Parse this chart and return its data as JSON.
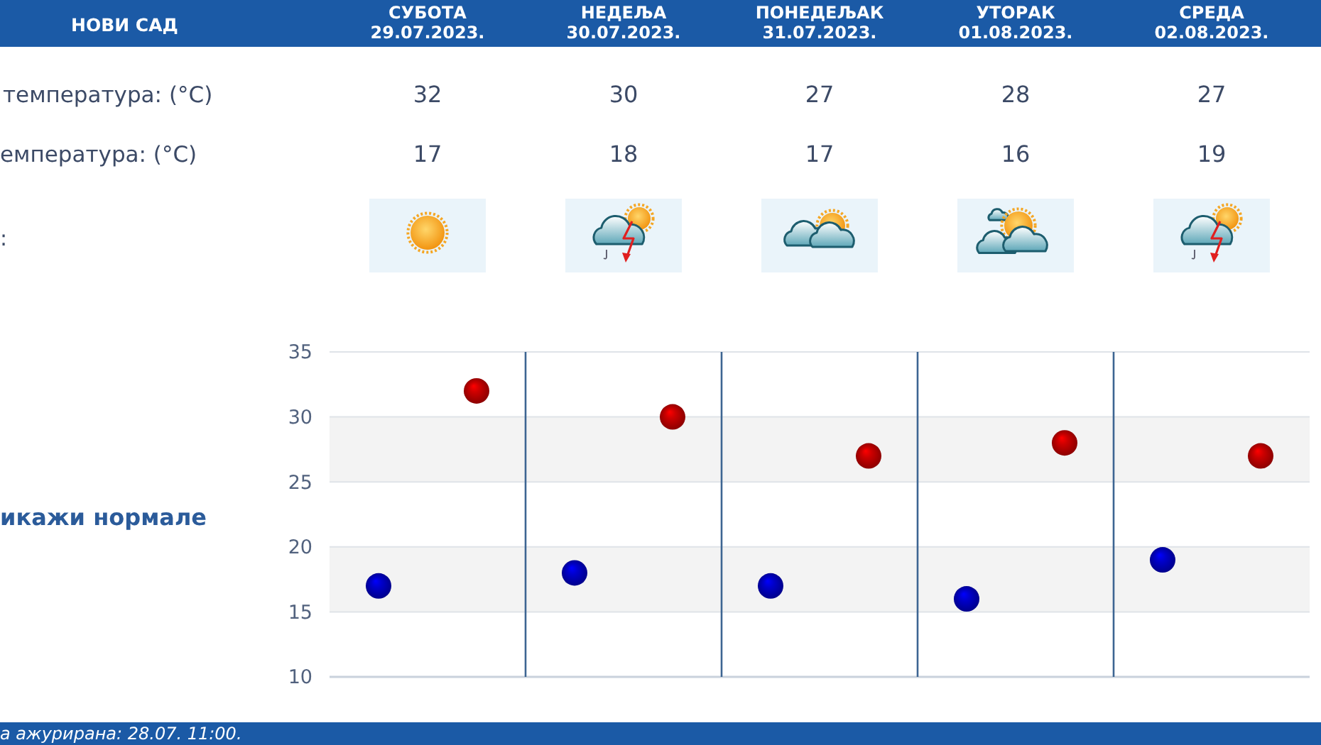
{
  "chart_data": [
    {
      "type": "other",
      "title": "НОВИ САД",
      "categories": [
        "СУБОТА\n29.07.2023.",
        "НЕДЕЉА\n30.07.2023.",
        "ПОНЕДЕЉАК\n31.07.2023.",
        "УТОРАК\n01.08.2023.",
        "СРЕДА\n02.08.2023."
      ],
      "series": [
        {
          "values": [
            32,
            30,
            27,
            28,
            27
          ]
        },
        {
          "values": [
            17,
            18,
            17,
            16,
            19
          ]
        }
      ],
      "data_labels": true,
      "annotations": [
        "температура: (°C)",
        "емпература: (°C)",
        ":"
      ]
    },
    {
      "type": "scatter",
      "categories": [
        null,
        null,
        null,
        null,
        null
      ],
      "series": [
        {
          "color": "#cc0000",
          "values": [
            32,
            30,
            27,
            28,
            27
          ]
        },
        {
          "color": "#0000cc",
          "values": [
            17,
            18,
            17,
            16,
            19
          ]
        }
      ],
      "ylim": [
        10,
        35
      ],
      "yticks": [
        10,
        15,
        20,
        25,
        30,
        35
      ],
      "grid": true,
      "marker": "circle",
      "bands": [
        {
          "axis": "y",
          "from": 15,
          "to": 20,
          "color": "#f3f3f3"
        },
        {
          "axis": "y",
          "from": 25,
          "to": 30,
          "color": "#f3f3f3"
        }
      ],
      "annotations": [
        "икажи нормале",
        "а ажурирана: 28.07. 11:00."
      ]
    }
  ]
}
